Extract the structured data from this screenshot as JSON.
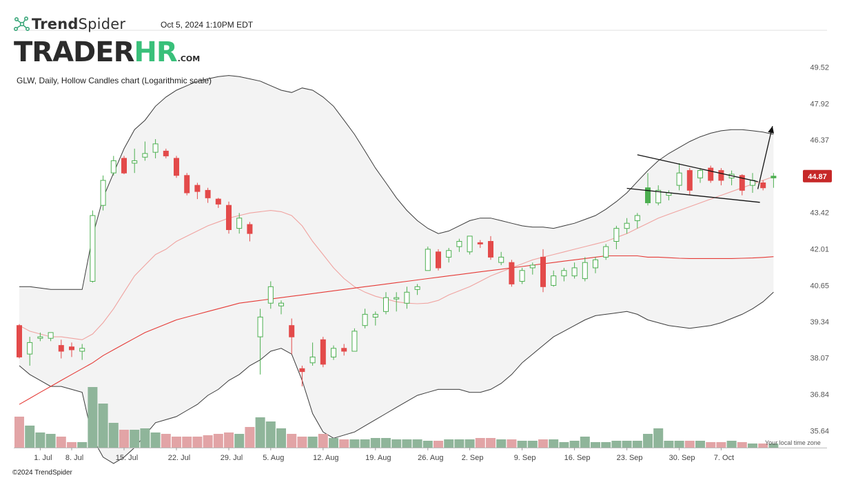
{
  "header": {
    "brand_bold": "Trend",
    "brand_light": "Spider",
    "timestamp": "Oct 5, 2024 1:10PM EDT",
    "logo_part1": "TRADER",
    "logo_part2": "HR",
    "logo_part3": ".COM",
    "chart_title": "GLW, Daily, Hollow Candles chart (Logarithmic scale)"
  },
  "footer": {
    "copyright": "©2024 TrendSpider",
    "timezone_note": "Your local time zone"
  },
  "colors": {
    "up": "#4caf50",
    "down": "#e34a4a",
    "vol_up": "#8fb59a",
    "vol_down": "#e2a4a6",
    "price_label_bg": "#c62828"
  },
  "chart_data": {
    "type": "candlestick",
    "symbol": "GLW",
    "interval": "Daily",
    "scale": "log",
    "ylim": [
      35.1,
      51.2
    ],
    "y_ticks": [
      49.52,
      47.92,
      46.37,
      44.87,
      43.42,
      42.01,
      40.65,
      39.34,
      38.07,
      36.84,
      35.64
    ],
    "current_price": 44.87,
    "x_ticks": [
      {
        "i": 2,
        "label": "1. Jul"
      },
      {
        "i": 5,
        "label": "8. Jul"
      },
      {
        "i": 10,
        "label": "15. Jul"
      },
      {
        "i": 15,
        "label": "22. Jul"
      },
      {
        "i": 20,
        "label": "29. Jul"
      },
      {
        "i": 24,
        "label": "5. Aug"
      },
      {
        "i": 29,
        "label": "12. Aug"
      },
      {
        "i": 34,
        "label": "19. Aug"
      },
      {
        "i": 39,
        "label": "26. Aug"
      },
      {
        "i": 43,
        "label": "2. Sep"
      },
      {
        "i": 48,
        "label": "9. Sep"
      },
      {
        "i": 53,
        "label": "16. Sep"
      },
      {
        "i": 58,
        "label": "23. Sep"
      },
      {
        "i": 63,
        "label": "30. Sep"
      },
      {
        "i": 67,
        "label": "7. Oct"
      }
    ],
    "candles": [
      {
        "o": 39.2,
        "h": 39.25,
        "l": 38.05,
        "c": 38.1,
        "f": 1
      },
      {
        "o": 38.2,
        "h": 38.8,
        "l": 37.8,
        "c": 38.6,
        "f": 0
      },
      {
        "o": 38.75,
        "h": 38.95,
        "l": 38.65,
        "c": 38.8,
        "f": 0
      },
      {
        "o": 38.75,
        "h": 38.95,
        "l": 38.65,
        "c": 38.95,
        "f": 0
      },
      {
        "o": 38.5,
        "h": 38.7,
        "l": 38.05,
        "c": 38.3,
        "f": 1
      },
      {
        "o": 38.45,
        "h": 38.6,
        "l": 38.1,
        "c": 38.35,
        "f": 0
      },
      {
        "o": 38.3,
        "h": 38.55,
        "l": 38.0,
        "c": 38.4,
        "f": 0
      },
      {
        "o": 40.8,
        "h": 43.5,
        "l": 40.75,
        "c": 43.3,
        "f": 0
      },
      {
        "o": 43.7,
        "h": 44.9,
        "l": 43.5,
        "c": 44.7,
        "f": 0
      },
      {
        "o": 45.0,
        "h": 45.7,
        "l": 44.9,
        "c": 45.5,
        "f": 0
      },
      {
        "o": 45.6,
        "h": 45.7,
        "l": 44.95,
        "c": 45.0,
        "f": 1
      },
      {
        "o": 45.4,
        "h": 46.0,
        "l": 45.0,
        "c": 45.5,
        "f": 0
      },
      {
        "o": 45.65,
        "h": 46.3,
        "l": 45.5,
        "c": 45.8,
        "f": 0
      },
      {
        "o": 45.85,
        "h": 46.4,
        "l": 45.6,
        "c": 46.2,
        "f": 0
      },
      {
        "o": 45.9,
        "h": 46.0,
        "l": 45.6,
        "c": 45.7,
        "f": 0
      },
      {
        "o": 45.6,
        "h": 45.7,
        "l": 44.8,
        "c": 44.9,
        "f": 1
      },
      {
        "o": 44.9,
        "h": 45.0,
        "l": 44.1,
        "c": 44.2,
        "f": 1
      },
      {
        "o": 44.5,
        "h": 44.6,
        "l": 43.95,
        "c": 44.25,
        "f": 1
      },
      {
        "o": 44.3,
        "h": 44.4,
        "l": 43.8,
        "c": 44.0,
        "f": 1
      },
      {
        "o": 43.95,
        "h": 44.0,
        "l": 43.6,
        "c": 43.75,
        "f": 1
      },
      {
        "o": 43.7,
        "h": 43.85,
        "l": 42.6,
        "c": 42.75,
        "f": 1
      },
      {
        "o": 42.8,
        "h": 43.4,
        "l": 42.6,
        "c": 43.2,
        "f": 0
      },
      {
        "o": 42.95,
        "h": 43.05,
        "l": 42.3,
        "c": 42.6,
        "f": 1
      },
      {
        "o": 38.8,
        "h": 39.8,
        "l": 37.5,
        "c": 39.5,
        "f": 0
      },
      {
        "o": 40.0,
        "h": 40.8,
        "l": 39.8,
        "c": 40.6,
        "f": 0
      },
      {
        "o": 39.9,
        "h": 40.1,
        "l": 39.6,
        "c": 40.0,
        "f": 0
      },
      {
        "o": 39.2,
        "h": 39.45,
        "l": 38.2,
        "c": 38.8,
        "f": 1
      },
      {
        "o": 37.7,
        "h": 37.8,
        "l": 37.1,
        "c": 37.6,
        "f": 1
      },
      {
        "o": 37.9,
        "h": 38.6,
        "l": 37.8,
        "c": 38.1,
        "f": 0
      },
      {
        "o": 38.7,
        "h": 38.8,
        "l": 37.75,
        "c": 37.85,
        "f": 1
      },
      {
        "o": 38.1,
        "h": 38.5,
        "l": 38.0,
        "c": 38.4,
        "f": 0
      },
      {
        "o": 38.4,
        "h": 38.55,
        "l": 38.15,
        "c": 38.3,
        "f": 1
      },
      {
        "o": 38.3,
        "h": 39.1,
        "l": 38.3,
        "c": 39.0,
        "f": 0
      },
      {
        "o": 39.2,
        "h": 39.8,
        "l": 39.1,
        "c": 39.6,
        "f": 0
      },
      {
        "o": 39.5,
        "h": 39.7,
        "l": 39.2,
        "c": 39.6,
        "f": 0
      },
      {
        "o": 39.7,
        "h": 40.4,
        "l": 39.6,
        "c": 40.2,
        "f": 0
      },
      {
        "o": 40.15,
        "h": 40.4,
        "l": 39.7,
        "c": 40.2,
        "f": 0
      },
      {
        "o": 40.0,
        "h": 40.6,
        "l": 39.8,
        "c": 40.4,
        "f": 0
      },
      {
        "o": 40.5,
        "h": 40.7,
        "l": 40.3,
        "c": 40.6,
        "f": 0
      },
      {
        "o": 41.2,
        "h": 42.1,
        "l": 41.2,
        "c": 42.0,
        "f": 0
      },
      {
        "o": 41.9,
        "h": 42.0,
        "l": 41.2,
        "c": 41.3,
        "f": 1
      },
      {
        "o": 41.7,
        "h": 42.05,
        "l": 41.5,
        "c": 41.95,
        "f": 0
      },
      {
        "o": 42.1,
        "h": 42.4,
        "l": 41.9,
        "c": 42.3,
        "f": 0
      },
      {
        "o": 41.9,
        "h": 42.5,
        "l": 41.8,
        "c": 42.5,
        "f": 0
      },
      {
        "o": 42.25,
        "h": 42.35,
        "l": 42.05,
        "c": 42.2,
        "f": 1
      },
      {
        "o": 42.3,
        "h": 42.5,
        "l": 41.6,
        "c": 41.7,
        "f": 1
      },
      {
        "o": 41.5,
        "h": 41.9,
        "l": 41.4,
        "c": 41.7,
        "f": 0
      },
      {
        "o": 41.5,
        "h": 41.6,
        "l": 40.6,
        "c": 40.7,
        "f": 1
      },
      {
        "o": 40.8,
        "h": 41.3,
        "l": 40.7,
        "c": 41.2,
        "f": 0
      },
      {
        "o": 41.3,
        "h": 41.5,
        "l": 41.05,
        "c": 41.4,
        "f": 0
      },
      {
        "o": 41.7,
        "h": 42.0,
        "l": 40.4,
        "c": 40.6,
        "f": 1
      },
      {
        "o": 40.65,
        "h": 41.2,
        "l": 40.6,
        "c": 41.0,
        "f": 0
      },
      {
        "o": 41.0,
        "h": 41.3,
        "l": 40.8,
        "c": 41.2,
        "f": 0
      },
      {
        "o": 41.0,
        "h": 41.5,
        "l": 40.9,
        "c": 41.3,
        "f": 0
      },
      {
        "o": 40.9,
        "h": 41.7,
        "l": 40.8,
        "c": 41.5,
        "f": 0
      },
      {
        "o": 41.3,
        "h": 41.7,
        "l": 41.1,
        "c": 41.6,
        "f": 0
      },
      {
        "o": 41.7,
        "h": 42.2,
        "l": 41.6,
        "c": 42.1,
        "f": 0
      },
      {
        "o": 42.3,
        "h": 42.9,
        "l": 42.0,
        "c": 42.8,
        "f": 0
      },
      {
        "o": 42.8,
        "h": 43.2,
        "l": 42.6,
        "c": 43.0,
        "f": 0
      },
      {
        "o": 43.1,
        "h": 43.4,
        "l": 42.8,
        "c": 43.3,
        "f": 0
      },
      {
        "o": 43.8,
        "h": 45.0,
        "l": 43.7,
        "c": 44.4,
        "f": 1
      },
      {
        "o": 43.8,
        "h": 44.5,
        "l": 43.7,
        "c": 44.3,
        "f": 0
      },
      {
        "o": 44.1,
        "h": 44.3,
        "l": 43.9,
        "c": 44.2,
        "f": 0
      },
      {
        "o": 44.5,
        "h": 45.4,
        "l": 44.3,
        "c": 45.0,
        "f": 0
      },
      {
        "o": 45.1,
        "h": 45.2,
        "l": 44.1,
        "c": 44.3,
        "f": 1
      },
      {
        "o": 44.8,
        "h": 45.2,
        "l": 44.6,
        "c": 45.1,
        "f": 0
      },
      {
        "o": 45.2,
        "h": 45.3,
        "l": 44.6,
        "c": 44.7,
        "f": 1
      },
      {
        "o": 45.1,
        "h": 45.2,
        "l": 44.5,
        "c": 44.7,
        "f": 1
      },
      {
        "o": 44.8,
        "h": 45.1,
        "l": 44.5,
        "c": 44.95,
        "f": 0
      },
      {
        "o": 44.9,
        "h": 44.95,
        "l": 44.1,
        "c": 44.3,
        "f": 1
      },
      {
        "o": 44.5,
        "h": 45.0,
        "l": 44.2,
        "c": 44.7,
        "f": 0
      },
      {
        "o": 44.6,
        "h": 44.7,
        "l": 44.3,
        "c": 44.4,
        "f": 1
      },
      {
        "o": 44.8,
        "h": 45.0,
        "l": 44.4,
        "c": 44.87,
        "f": 1
      }
    ],
    "volume_scale_max": 100,
    "volume": [
      45,
      32,
      22,
      20,
      16,
      8,
      8,
      88,
      64,
      36,
      26,
      26,
      28,
      22,
      20,
      16,
      16,
      16,
      18,
      20,
      22,
      20,
      30,
      44,
      38,
      28,
      20,
      16,
      16,
      20,
      14,
      12,
      12,
      12,
      14,
      14,
      12,
      12,
      12,
      10,
      10,
      12,
      12,
      12,
      14,
      14,
      12,
      12,
      10,
      10,
      12,
      12,
      8,
      10,
      16,
      8,
      8,
      10,
      10,
      10,
      20,
      28,
      10,
      10,
      10,
      10,
      8,
      8,
      10,
      8,
      6,
      6,
      6
    ],
    "bollinger": {
      "middle": [
        39.2,
        39.0,
        38.9,
        38.8,
        38.8,
        38.75,
        38.7,
        38.9,
        39.3,
        39.8,
        40.4,
        41.0,
        41.4,
        41.8,
        42.0,
        42.3,
        42.5,
        42.7,
        42.9,
        43.05,
        43.2,
        43.3,
        43.4,
        43.45,
        43.5,
        43.45,
        43.3,
        42.9,
        42.3,
        41.8,
        41.3,
        40.9,
        40.6,
        40.4,
        40.25,
        40.15,
        40.05,
        40.0,
        39.98,
        40.0,
        40.1,
        40.3,
        40.45,
        40.6,
        40.8,
        41.0,
        41.15,
        41.3,
        41.45,
        41.6,
        41.7,
        41.8,
        41.9,
        42.0,
        42.1,
        42.2,
        42.3,
        42.45,
        42.6,
        42.8,
        43.0,
        43.2,
        43.35,
        43.5,
        43.65,
        43.8,
        43.95,
        44.1,
        44.25,
        44.4,
        44.55,
        44.7,
        44.85
      ],
      "upper": [
        40.6,
        40.6,
        40.55,
        40.5,
        40.5,
        40.5,
        40.5,
        42.5,
        44.0,
        45.0,
        46.0,
        46.8,
        47.2,
        47.8,
        48.2,
        48.5,
        48.7,
        48.9,
        49.0,
        49.1,
        49.15,
        49.1,
        49.0,
        48.9,
        48.7,
        48.5,
        48.4,
        48.6,
        48.5,
        48.2,
        47.8,
        47.2,
        46.6,
        45.9,
        45.2,
        44.6,
        44.0,
        43.5,
        43.1,
        42.8,
        42.6,
        42.7,
        42.9,
        43.1,
        43.2,
        43.2,
        43.1,
        43.0,
        42.9,
        42.85,
        42.85,
        42.8,
        42.9,
        43.0,
        43.15,
        43.3,
        43.55,
        43.85,
        44.2,
        44.65,
        45.1,
        45.5,
        45.8,
        46.05,
        46.3,
        46.5,
        46.65,
        46.75,
        46.8,
        46.8,
        46.75,
        46.7,
        46.6
      ],
      "lower": [
        37.8,
        37.5,
        37.3,
        37.1,
        37.1,
        37.0,
        36.9,
        35.4,
        34.8,
        34.6,
        34.8,
        35.1,
        35.5,
        35.9,
        36.0,
        36.1,
        36.3,
        36.5,
        36.8,
        37.0,
        37.3,
        37.5,
        37.8,
        38.0,
        38.3,
        38.4,
        38.2,
        37.3,
        36.2,
        35.6,
        35.4,
        35.5,
        35.6,
        35.8,
        36.0,
        36.2,
        36.4,
        36.6,
        36.8,
        36.9,
        37.0,
        37.0,
        37.0,
        36.9,
        36.9,
        37.0,
        37.2,
        37.5,
        37.9,
        38.2,
        38.5,
        38.8,
        39.0,
        39.2,
        39.4,
        39.55,
        39.6,
        39.65,
        39.7,
        39.6,
        39.4,
        39.3,
        39.2,
        39.15,
        39.1,
        39.15,
        39.2,
        39.3,
        39.45,
        39.6,
        39.8,
        40.05,
        40.4
      ]
    },
    "ma50": [
      36.5,
      36.7,
      36.9,
      37.1,
      37.3,
      37.5,
      37.7,
      37.9,
      38.15,
      38.35,
      38.55,
      38.75,
      38.95,
      39.1,
      39.25,
      39.4,
      39.5,
      39.6,
      39.7,
      39.8,
      39.9,
      40.0,
      40.05,
      40.1,
      40.15,
      40.2,
      40.25,
      40.3,
      40.35,
      40.4,
      40.45,
      40.5,
      40.55,
      40.6,
      40.65,
      40.7,
      40.75,
      40.8,
      40.85,
      40.9,
      40.95,
      41.0,
      41.05,
      41.1,
      41.15,
      41.2,
      41.25,
      41.3,
      41.35,
      41.4,
      41.45,
      41.5,
      41.55,
      41.6,
      41.65,
      41.7,
      41.75,
      41.75,
      41.75,
      41.75,
      41.7,
      41.7,
      41.68,
      41.66,
      41.65,
      41.65,
      41.65,
      41.65,
      41.65,
      41.66,
      41.67,
      41.69,
      41.72
    ],
    "trendlines": [
      {
        "i1": 59,
        "p1": 45.75,
        "i2": 70.5,
        "p2": 44.65
      },
      {
        "i1": 58,
        "p1": 44.38,
        "i2": 70.7,
        "p2": 43.82
      }
    ],
    "arrow": {
      "i1": 70.5,
      "p1": 44.35,
      "i2": 71.9,
      "p2": 46.95
    }
  }
}
